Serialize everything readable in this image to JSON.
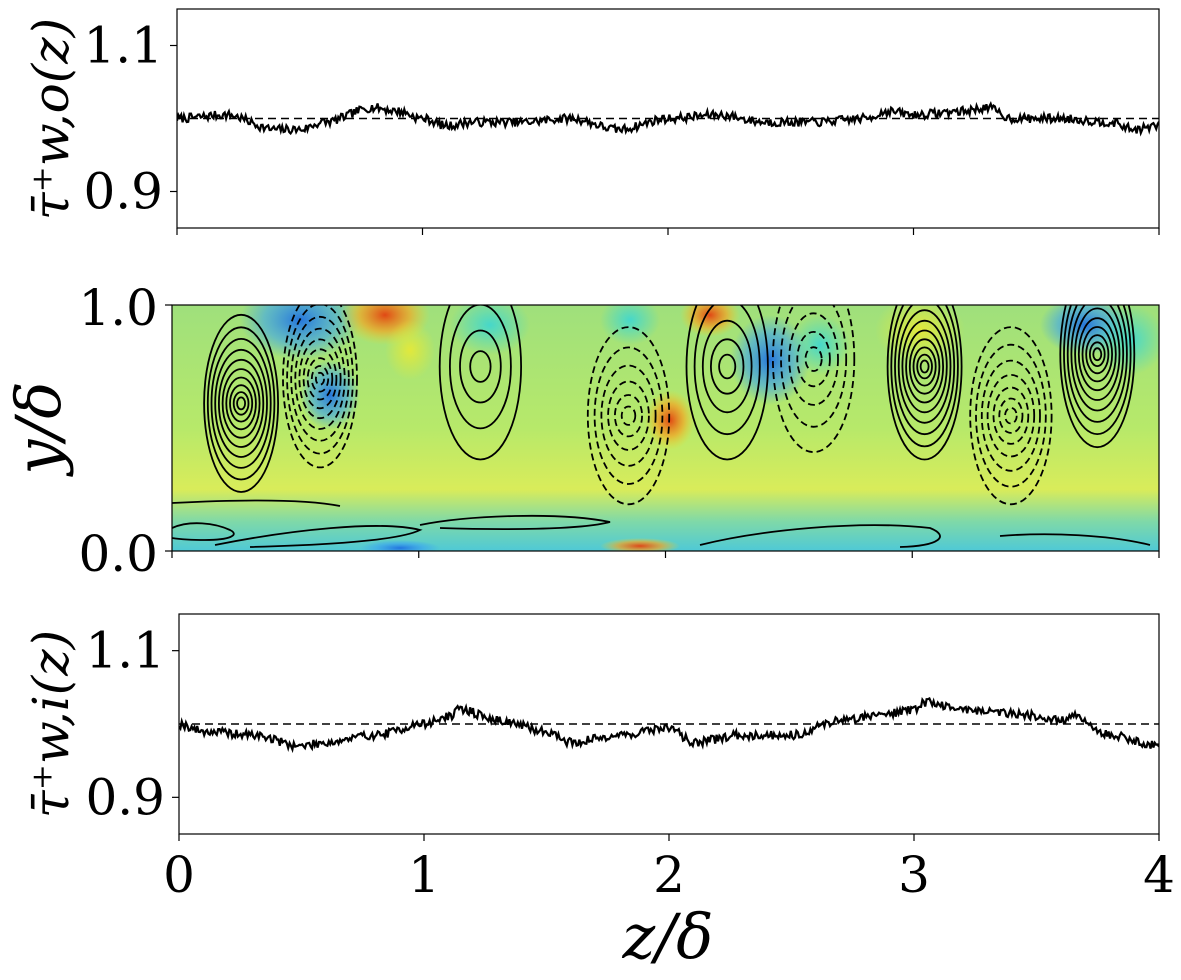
{
  "chart_data": [
    {
      "type": "line",
      "panel": "top",
      "ylabel": "τ̄⁺w,o(z)",
      "xlabel": "",
      "xlim": [
        0,
        4
      ],
      "ylim": [
        0.85,
        1.15
      ],
      "yticks": [
        0.9,
        1.1
      ],
      "ytick_labels": [
        "0.9",
        "1.1"
      ],
      "reference_line": 1.0,
      "series": [
        {
          "name": "tau_w_outer",
          "x": [
            0.0,
            0.2,
            0.4,
            0.5,
            0.6,
            0.8,
            0.9,
            1.0,
            1.1,
            1.2,
            1.4,
            1.6,
            1.8,
            2.0,
            2.2,
            2.4,
            2.6,
            2.8,
            2.9,
            3.0,
            3.2,
            3.3,
            3.4,
            3.6,
            3.8,
            3.9,
            4.0
          ],
          "values": [
            1.0,
            1.005,
            0.985,
            0.985,
            0.995,
            1.015,
            1.01,
            1.0,
            0.99,
            0.995,
            0.995,
            1.0,
            0.985,
            1.0,
            1.005,
            0.995,
            0.995,
            1.0,
            1.01,
            1.005,
            1.01,
            1.015,
            1.0,
            1.0,
            0.995,
            0.985,
            0.99
          ]
        }
      ]
    },
    {
      "type": "heatmap",
      "panel": "middle",
      "ylabel": "y/δ",
      "xlabel": "",
      "xlim": [
        0,
        4
      ],
      "ylim": [
        0.0,
        1.0
      ],
      "yticks": [
        0.0,
        1.0
      ],
      "ytick_labels": [
        "0.0",
        "1.0"
      ],
      "colormap": "jet",
      "contours": {
        "positive_style": "solid",
        "negative_style": "dashed",
        "vortex_centers": [
          {
            "z": 0.28,
            "y": 0.6,
            "sign": "+",
            "levels": 10
          },
          {
            "z": 0.6,
            "y": 0.7,
            "sign": "-",
            "levels": 9
          },
          {
            "z": 1.25,
            "y": 0.75,
            "sign": "+",
            "levels": 4
          },
          {
            "z": 1.85,
            "y": 0.55,
            "sign": "-",
            "levels": 6
          },
          {
            "z": 2.25,
            "y": 0.75,
            "sign": "+",
            "levels": 5
          },
          {
            "z": 2.6,
            "y": 0.78,
            "sign": "-",
            "levels": 5
          },
          {
            "z": 3.05,
            "y": 0.75,
            "sign": "+",
            "levels": 10
          },
          {
            "z": 3.4,
            "y": 0.55,
            "sign": "-",
            "levels": 7
          },
          {
            "z": 3.75,
            "y": 0.8,
            "sign": "+",
            "levels": 10
          }
        ]
      }
    },
    {
      "type": "line",
      "panel": "bottom",
      "ylabel": "τ̄⁺w,i(z)",
      "xlabel": "z/δ",
      "xlim": [
        0,
        4
      ],
      "ylim": [
        0.85,
        1.15
      ],
      "xticks": [
        0,
        1,
        2,
        3,
        4
      ],
      "xtick_labels": [
        "0",
        "1",
        "2",
        "3",
        "4"
      ],
      "yticks": [
        0.9,
        1.1
      ],
      "ytick_labels": [
        "0.9",
        "1.1"
      ],
      "reference_line": 1.0,
      "series": [
        {
          "name": "tau_w_inner",
          "x": [
            0.0,
            0.1,
            0.3,
            0.5,
            0.6,
            0.8,
            1.0,
            1.1,
            1.15,
            1.3,
            1.5,
            1.6,
            1.8,
            2.0,
            2.1,
            2.3,
            2.5,
            2.7,
            2.9,
            3.0,
            3.05,
            3.2,
            3.4,
            3.6,
            3.65,
            3.8,
            4.0
          ],
          "values": [
            1.0,
            0.99,
            0.985,
            0.97,
            0.975,
            0.985,
            1.0,
            1.01,
            1.02,
            1.005,
            0.99,
            0.975,
            0.985,
            0.995,
            0.975,
            0.985,
            0.985,
            1.005,
            1.015,
            1.02,
            1.03,
            1.02,
            1.015,
            1.005,
            1.01,
            0.985,
            0.97
          ]
        }
      ]
    }
  ]
}
